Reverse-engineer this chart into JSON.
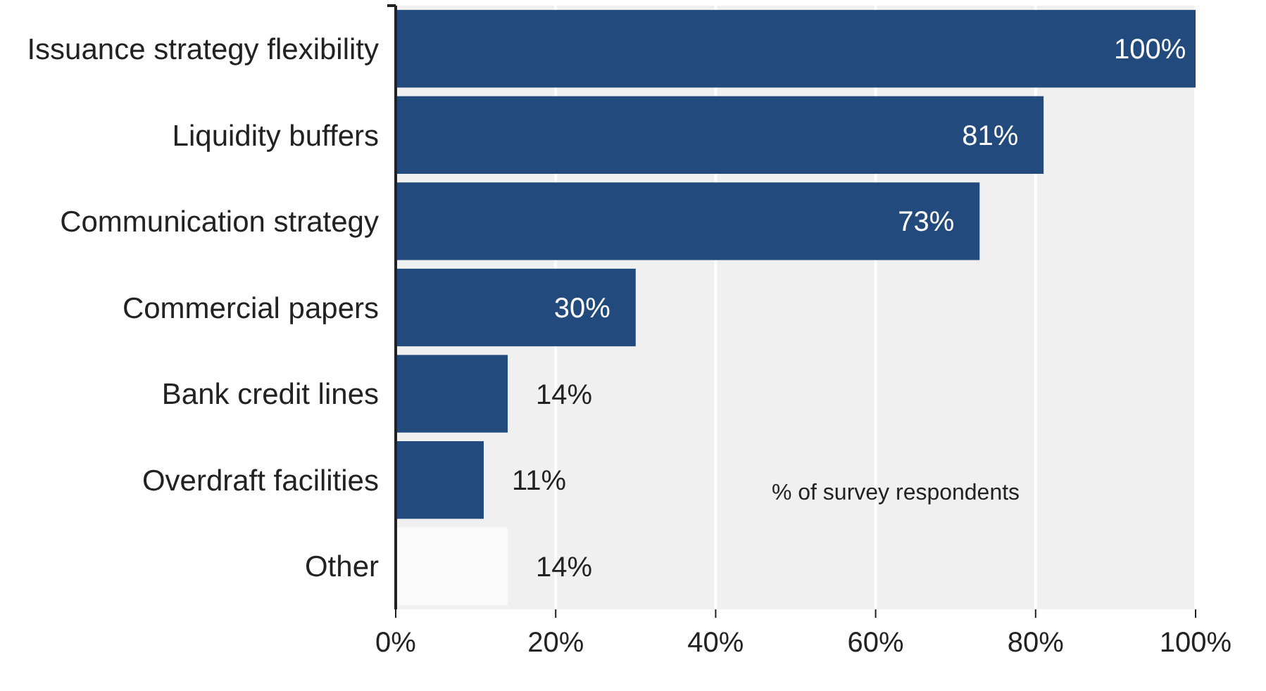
{
  "chart_data": {
    "type": "bar",
    "orientation": "horizontal",
    "categories": [
      "Issuance strategy flexibility",
      "Liquidity buffers",
      "Communication strategy",
      "Commercial papers",
      "Bank credit lines",
      "Overdraft facilities",
      "Other"
    ],
    "values": [
      100,
      81,
      73,
      30,
      14,
      11,
      14
    ],
    "colors": [
      "#234a7c",
      "#234a7c",
      "#234a7c",
      "#234a7c",
      "#234a7c",
      "#234a7c",
      "#fafafa"
    ],
    "value_labels": [
      "100%",
      "81%",
      "73%",
      "30%",
      "14%",
      "11%",
      "14%"
    ],
    "xlim": [
      0,
      100
    ],
    "xticks": [
      {
        "value": 0,
        "label": "0%"
      },
      {
        "value": 20,
        "label": "20%"
      },
      {
        "value": 40,
        "label": "40%"
      },
      {
        "value": 60,
        "label": "60%"
      },
      {
        "value": 80,
        "label": "80%"
      },
      {
        "value": 100,
        "label": "100%"
      }
    ],
    "grid": "x",
    "annotations": [
      "% of survey respondents"
    ]
  }
}
